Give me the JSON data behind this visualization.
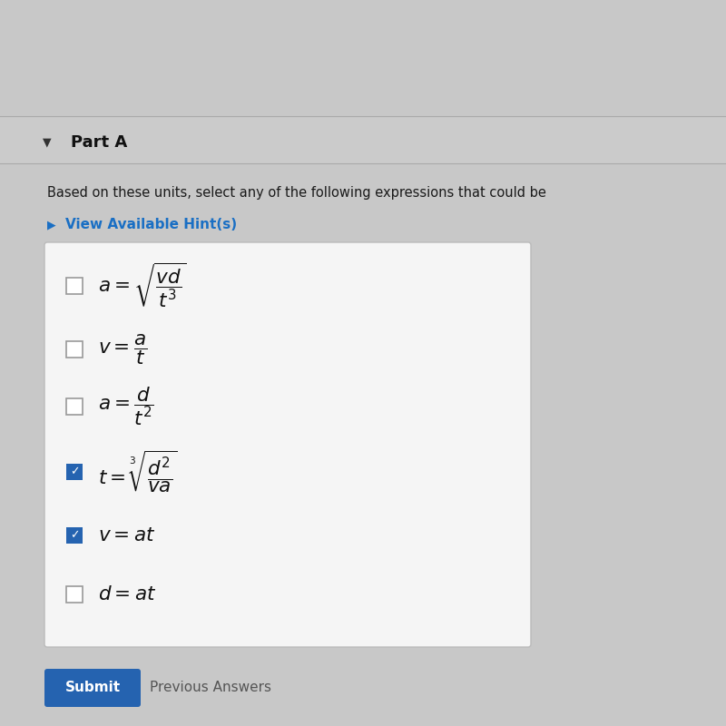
{
  "bg_color": "#c8c8c8",
  "panel_bg": "#d0d0d0",
  "white_box_bg": "#f5f5f5",
  "white_box_border": "#bbbbbb",
  "part_a_text": "Part A",
  "question_text": "Based on these units, select any of the following expressions that could be",
  "hint_text": "View Available Hint(s)",
  "hint_color": "#1a6fc4",
  "hint_triangle_color": "#1a6fc4",
  "part_a_triangle_color": "#333333",
  "checkmark_color": "#2563b0",
  "items": [
    {
      "checked": false,
      "latex": "$a = \\sqrt{\\dfrac{vd}{t^3}}$"
    },
    {
      "checked": false,
      "latex": "$v = \\dfrac{a}{t}$"
    },
    {
      "checked": false,
      "latex": "$a = \\dfrac{d}{t^2}$"
    },
    {
      "checked": true,
      "latex": "$t = \\sqrt[3]{\\dfrac{d^2}{va}}$"
    },
    {
      "checked": true,
      "latex": "$v = at$"
    },
    {
      "checked": false,
      "latex": "$d = at$"
    }
  ],
  "submit_text": "Submit",
  "submit_bg": "#2563b0",
  "prev_text": "Previous Answers",
  "figsize": [
    8.0,
    8.0
  ],
  "dpi": 100
}
